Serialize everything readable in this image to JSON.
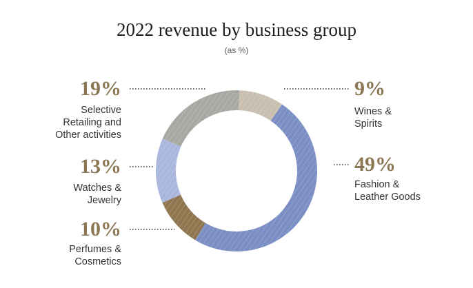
{
  "title": "2022 revenue by business group",
  "subtitle": "(as %)",
  "colors": {
    "wines_spirits": "#c9bfb0",
    "fashion_leather": "#7b8fc4",
    "perfumes_cosmetics": "#8f7650",
    "watches_jewelry": "#a9b6dd",
    "selective_retailing": "#a8a8a3",
    "percent_text": "#8c7755"
  },
  "chart_data": {
    "type": "pie",
    "donut": true,
    "title": "2022 revenue by business group",
    "subtitle": "(as %)",
    "categories": [
      "Wines & Spirits",
      "Fashion & Leather Goods",
      "Perfumes & Cosmetics",
      "Watches & Jewelry",
      "Selective Retailing and Other activities"
    ],
    "values": [
      9,
      49,
      10,
      13,
      19
    ],
    "labels": {
      "wines_spirits": {
        "pct": "9%",
        "name": "Wines &\nSpirits"
      },
      "fashion_leather": {
        "pct": "49%",
        "name": "Fashion &\nLeather Goods"
      },
      "perfumes_cosmetics": {
        "pct": "10%",
        "name": "Perfumes &\nCosmetics"
      },
      "watches_jewelry": {
        "pct": "13%",
        "name": "Watches &\nJewelry"
      },
      "selective_retailing": {
        "pct": "19%",
        "name": "Selective\nRetailing and\nOther activities"
      }
    }
  }
}
